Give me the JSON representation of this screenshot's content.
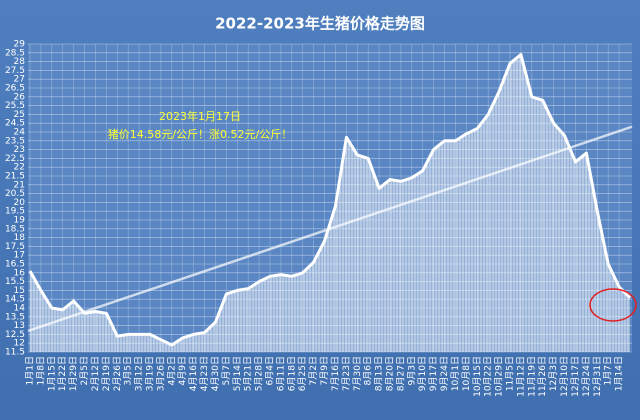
{
  "chart_data": {
    "type": "area",
    "title": "2022-2023年生猪价格走势图",
    "annotations": [
      "2023年1月17日",
      "猪价14.58元/公斤！涨0.52元/公斤！"
    ],
    "categories": [
      "1月1日",
      "1月8日",
      "1月15日",
      "1月22日",
      "1月29日",
      "2月5日",
      "2月12日",
      "2月19日",
      "2月26日",
      "3月5日",
      "3月12日",
      "3月19日",
      "3月26日",
      "4月2日",
      "4月9日",
      "4月16日",
      "4月23日",
      "4月30日",
      "5月7日",
      "5月14日",
      "5月21日",
      "5月28日",
      "6月4日",
      "6月11日",
      "6月18日",
      "6月25日",
      "7月2日",
      "7月9日",
      "7月16日",
      "7月23日",
      "7月30日",
      "8月6日",
      "8月13日",
      "8月20日",
      "8月27日",
      "9月3日",
      "9月10日",
      "9月17日",
      "9月24日",
      "10月1日",
      "10月8日",
      "10月15日",
      "10月22日",
      "10月29日",
      "11月5日",
      "11月12日",
      "11月19日",
      "11月26日",
      "12月3日",
      "12月10日",
      "12月17日",
      "12月24日",
      "12月31日",
      "1月7日",
      "1月14日",
      null
    ],
    "series": [
      {
        "color": "#ffffff",
        "values": [
          16.1,
          15.0,
          14.0,
          13.9,
          14.4,
          13.7,
          13.8,
          13.7,
          12.4,
          12.5,
          12.5,
          12.5,
          12.2,
          11.9,
          12.3,
          12.5,
          12.6,
          13.2,
          14.8,
          15.0,
          15.1,
          15.5,
          15.8,
          15.9,
          15.8,
          16.0,
          16.6,
          17.8,
          19.8,
          23.7,
          22.7,
          22.5,
          20.8,
          21.3,
          21.2,
          21.4,
          21.8,
          23.0,
          23.5,
          23.5,
          23.9,
          24.2,
          25.0,
          26.3,
          27.9,
          28.4,
          26.0,
          25.8,
          24.5,
          23.8,
          22.3,
          22.8,
          19.5,
          16.5,
          15.2,
          14.58
        ]
      }
    ],
    "trend_line": [
      12.7,
      24.3
    ],
    "ylim": [
      11.5,
      29
    ],
    "yticks": [
      11.5,
      12,
      12.5,
      13,
      13.5,
      14,
      14.5,
      15,
      15.5,
      16,
      16.5,
      17,
      17.5,
      18,
      18.5,
      19,
      19.5,
      20,
      20.5,
      21,
      21.5,
      22,
      22.5,
      23,
      23.5,
      24,
      24.5,
      25,
      25.5,
      26,
      26.5,
      27,
      27.5,
      28,
      28.5,
      29
    ],
    "grid": true
  }
}
